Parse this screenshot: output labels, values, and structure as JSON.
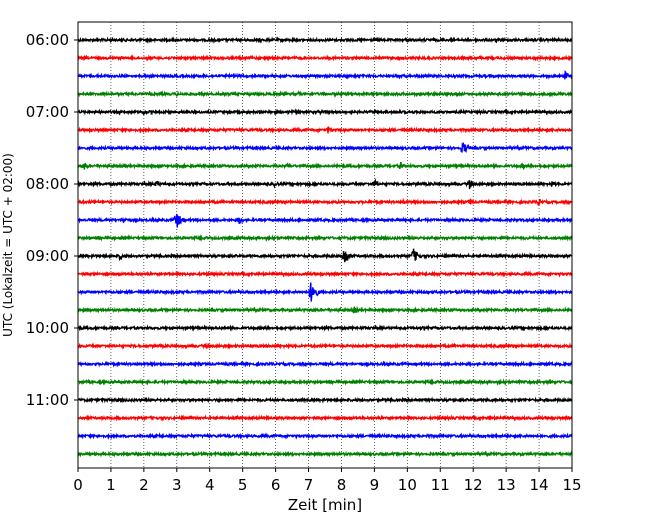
{
  "chart_data": {
    "type": "line",
    "title": "",
    "xlabel": "Zeit  [min]",
    "ylabel": "UTC (Lokalzeit = UTC + 02:00)",
    "xlim": [
      0,
      15
    ],
    "x_ticks": [
      "0",
      "1",
      "2",
      "3",
      "4",
      "5",
      "6",
      "7",
      "8",
      "9",
      "10",
      "11",
      "12",
      "13",
      "14",
      "15"
    ],
    "y_ticks": [
      "06:00",
      "07:00",
      "08:00",
      "09:00",
      "10:00",
      "11:00"
    ],
    "grid": "vertical dotted at each minute",
    "line_interval_min": 15,
    "colors": [
      "#000000",
      "#ff0000",
      "#0000ff",
      "#008000"
    ],
    "series": [
      {
        "start": "06:00",
        "color": "#000000",
        "events": []
      },
      {
        "start": "06:15",
        "color": "#ff0000",
        "events": []
      },
      {
        "start": "06:30",
        "color": "#0000ff",
        "events": [
          {
            "t": 14.8,
            "amp": 5
          }
        ]
      },
      {
        "start": "06:45",
        "color": "#008000",
        "events": [
          {
            "t": 3.0,
            "amp": 2
          },
          {
            "t": 6.7,
            "amp": 2
          },
          {
            "t": 13.4,
            "amp": 2
          }
        ]
      },
      {
        "start": "07:00",
        "color": "#000000",
        "events": [
          {
            "t": 2.0,
            "amp": 3
          },
          {
            "t": 7.4,
            "amp": 3
          }
        ]
      },
      {
        "start": "07:15",
        "color": "#ff0000",
        "events": [
          {
            "t": 7.6,
            "amp": 4
          }
        ]
      },
      {
        "start": "07:30",
        "color": "#0000ff",
        "events": [
          {
            "t": 11.7,
            "amp": 7
          },
          {
            "t": 13.6,
            "amp": 2
          }
        ]
      },
      {
        "start": "07:45",
        "color": "#008000",
        "events": [
          {
            "t": 0.2,
            "amp": 5
          },
          {
            "t": 6.4,
            "amp": 4
          },
          {
            "t": 9.8,
            "amp": 4
          },
          {
            "t": 13.5,
            "amp": 3
          }
        ]
      },
      {
        "start": "08:00",
        "color": "#000000",
        "events": [
          {
            "t": 2.4,
            "amp": 4
          },
          {
            "t": 6.0,
            "amp": 4
          },
          {
            "t": 9.0,
            "amp": 5
          },
          {
            "t": 11.9,
            "amp": 6
          },
          {
            "t": 14.4,
            "amp": 4
          }
        ]
      },
      {
        "start": "08:15",
        "color": "#ff0000",
        "events": [
          {
            "t": 9.9,
            "amp": 3
          },
          {
            "t": 11.9,
            "amp": 4
          },
          {
            "t": 14.0,
            "amp": 4
          }
        ]
      },
      {
        "start": "08:30",
        "color": "#0000ff",
        "events": [
          {
            "t": 1.4,
            "amp": 4
          },
          {
            "t": 3.0,
            "amp": 9
          },
          {
            "t": 4.9,
            "amp": 5
          }
        ]
      },
      {
        "start": "08:45",
        "color": "#008000",
        "events": []
      },
      {
        "start": "09:00",
        "color": "#000000",
        "events": [
          {
            "t": 1.3,
            "amp": 5
          },
          {
            "t": 8.1,
            "amp": 10
          },
          {
            "t": 10.2,
            "amp": 8
          }
        ]
      },
      {
        "start": "09:15",
        "color": "#ff0000",
        "events": []
      },
      {
        "start": "09:30",
        "color": "#0000ff",
        "events": [
          {
            "t": 7.1,
            "amp": 13
          }
        ]
      },
      {
        "start": "09:45",
        "color": "#008000",
        "events": [
          {
            "t": 8.4,
            "amp": 4
          }
        ]
      },
      {
        "start": "10:00",
        "color": "#000000",
        "events": []
      },
      {
        "start": "10:15",
        "color": "#ff0000",
        "events": []
      },
      {
        "start": "10:30",
        "color": "#0000ff",
        "events": []
      },
      {
        "start": "10:45",
        "color": "#008000",
        "events": []
      },
      {
        "start": "11:00",
        "color": "#000000",
        "events": [
          {
            "t": 12.4,
            "amp": 3
          }
        ]
      },
      {
        "start": "11:15",
        "color": "#ff0000",
        "events": [
          {
            "t": 12.5,
            "amp": 3
          }
        ]
      },
      {
        "start": "11:30",
        "color": "#0000ff",
        "events": [
          {
            "t": 2.5,
            "amp": 2
          },
          {
            "t": 10.6,
            "amp": 2
          }
        ]
      },
      {
        "start": "11:45",
        "color": "#008000",
        "events": []
      }
    ]
  }
}
